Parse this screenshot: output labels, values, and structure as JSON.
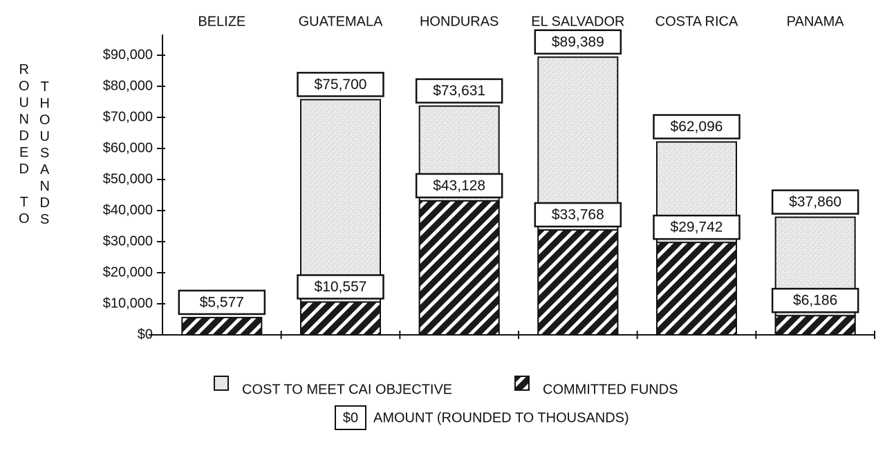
{
  "chart_data": {
    "type": "bar",
    "mode": "overlap",
    "ylabel_lines": [
      "ROUNDED TO",
      "THOUSANDS"
    ],
    "categories": [
      "BELIZE",
      "GUATEMALA",
      "HONDURAS",
      "EL SALVADOR",
      "COSTA RICA",
      "PANAMA"
    ],
    "series": [
      {
        "name": "COST TO MEET CAI OBJECTIVE",
        "color": "#c4c4c4",
        "pattern": "dots",
        "values": [
          null,
          75700,
          73631,
          89389,
          62096,
          37860
        ],
        "value_labels": [
          null,
          "$75,700",
          "$73,631",
          "$89,389",
          "$62,096",
          "$37,860"
        ]
      },
      {
        "name": "COMMITTED FUNDS",
        "color": "#1a1a1a",
        "pattern": "hatch",
        "values": [
          5577,
          10557,
          43128,
          33768,
          29742,
          6186
        ],
        "value_labels": [
          "$5,577",
          "$10,557",
          "$43,128",
          "$33,768",
          "$29,742",
          "$6,186"
        ]
      }
    ],
    "amount_note": {
      "sample": "$0",
      "text": "AMOUNT (ROUNDED TO THOUSANDS)"
    },
    "ylim": [
      0,
      90000
    ],
    "yticks": [
      {
        "value": 0,
        "label": "$0"
      },
      {
        "value": 10000,
        "label": "$10,000"
      },
      {
        "value": 20000,
        "label": "$20,000"
      },
      {
        "value": 30000,
        "label": "$30,000"
      },
      {
        "value": 40000,
        "label": "$40,000"
      },
      {
        "value": 50000,
        "label": "$50,000"
      },
      {
        "value": 60000,
        "label": "$60,000"
      },
      {
        "value": 70000,
        "label": "$70,000"
      },
      {
        "value": 80000,
        "label": "$80,000"
      },
      {
        "value": 90000,
        "label": "$90,000"
      }
    ]
  }
}
